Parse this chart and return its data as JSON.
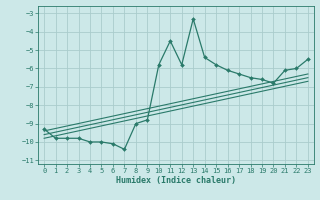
{
  "xlabel": "Humidex (Indice chaleur)",
  "bg_color": "#cce8e8",
  "grid_color": "#aacccc",
  "line_color": "#2a7a6a",
  "xlim": [
    -0.5,
    23.5
  ],
  "ylim": [
    -11.2,
    -2.6
  ],
  "yticks": [
    -11,
    -10,
    -9,
    -8,
    -7,
    -6,
    -5,
    -4,
    -3
  ],
  "xticks": [
    0,
    1,
    2,
    3,
    4,
    5,
    6,
    7,
    8,
    9,
    10,
    11,
    12,
    13,
    14,
    15,
    16,
    17,
    18,
    19,
    20,
    21,
    22,
    23
  ],
  "curve_x": [
    0,
    1,
    2,
    3,
    4,
    5,
    6,
    7,
    8,
    9,
    10,
    11,
    12,
    13,
    14,
    15,
    16,
    17,
    18,
    19,
    20,
    21,
    22,
    23
  ],
  "curve_y": [
    -9.3,
    -9.8,
    -9.8,
    -9.8,
    -10.0,
    -10.0,
    -10.1,
    -10.4,
    -9.0,
    -8.8,
    -5.8,
    -4.5,
    -5.8,
    -3.3,
    -5.4,
    -5.8,
    -6.1,
    -6.3,
    -6.5,
    -6.6,
    -6.8,
    -6.1,
    -6.0,
    -5.5
  ],
  "line1_x": [
    0,
    23
  ],
  "line1_y": [
    -9.4,
    -6.3
  ],
  "line2_x": [
    0,
    23
  ],
  "line2_y": [
    -9.6,
    -6.5
  ],
  "line3_x": [
    0,
    23
  ],
  "line3_y": [
    -9.8,
    -6.7
  ]
}
